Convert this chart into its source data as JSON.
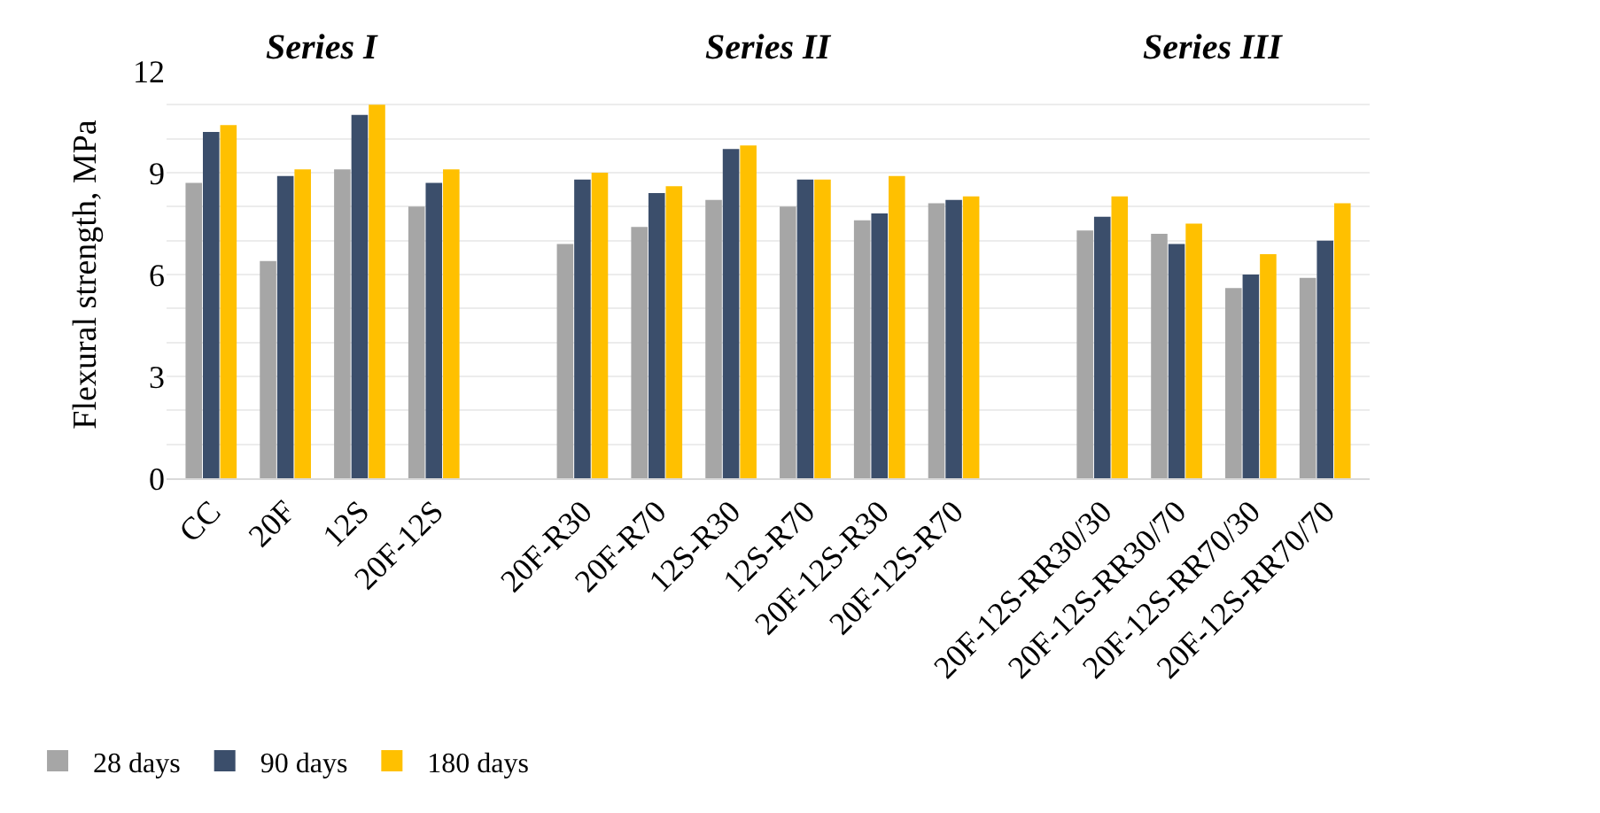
{
  "chart_data": {
    "type": "bar",
    "ylabel": "Flexural strength, MPa",
    "categories": [
      "CC",
      "20F",
      "12S",
      "20F-12S",
      null,
      "20F-R30",
      "20F-R70",
      "12S-R30",
      "12S-R70",
      "20F-12S-R30",
      "20F-12S-R70",
      null,
      "20F-12S-RR30/30",
      "20F-12S-RR30/70",
      "20F-12S-RR70/30",
      "20F-12S-RR70/70"
    ],
    "series": [
      {
        "name": "28 days",
        "color": "#a6a6a6",
        "values": [
          8.7,
          6.4,
          9.1,
          8.0,
          null,
          6.9,
          7.4,
          8.2,
          8.0,
          7.6,
          8.1,
          null,
          7.3,
          7.2,
          5.6,
          5.9
        ]
      },
      {
        "name": "90 days",
        "color": "#3b4e6b",
        "values": [
          10.2,
          8.9,
          10.7,
          8.7,
          null,
          8.8,
          8.4,
          9.7,
          8.8,
          7.8,
          8.2,
          null,
          7.7,
          6.9,
          6.0,
          7.0
        ]
      },
      {
        "name": "180 days",
        "color": "#ffc000",
        "values": [
          10.4,
          9.1,
          11.0,
          9.1,
          null,
          9.0,
          8.6,
          9.8,
          8.8,
          8.9,
          8.3,
          null,
          8.3,
          7.5,
          6.6,
          8.1
        ]
      }
    ],
    "annotations": [
      "Series I",
      "Series II",
      "Series III"
    ],
    "ylim": [
      0,
      12
    ],
    "yticks": [
      0,
      {
        "value": 1,
        "label": null
      },
      {
        "value": 2,
        "label": null
      },
      3,
      {
        "value": 4,
        "label": null
      },
      {
        "value": 5,
        "label": null
      },
      6,
      {
        "value": 7,
        "label": null
      },
      {
        "value": 8,
        "label": null
      },
      9,
      {
        "value": 10,
        "label": null
      },
      {
        "value": 11,
        "label": null
      },
      12
    ],
    "grid": "y",
    "legend": "bottom left"
  }
}
